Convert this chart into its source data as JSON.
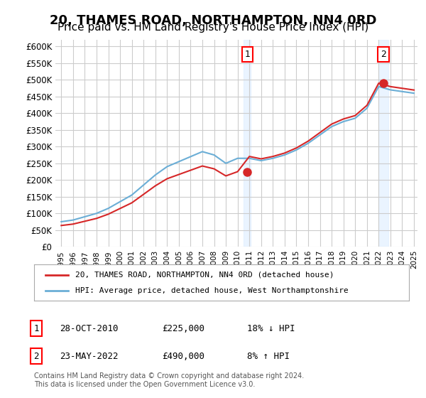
{
  "title": "20, THAMES ROAD, NORTHAMPTON, NN4 0RD",
  "subtitle": "Price paid vs. HM Land Registry's House Price Index (HPI)",
  "title_fontsize": 13,
  "subtitle_fontsize": 11,
  "ylabel_ticks": [
    "£0",
    "£50K",
    "£100K",
    "£150K",
    "£200K",
    "£250K",
    "£300K",
    "£350K",
    "£400K",
    "£450K",
    "£500K",
    "£550K",
    "£600K"
  ],
  "ytick_values": [
    0,
    50000,
    100000,
    150000,
    200000,
    250000,
    300000,
    350000,
    400000,
    450000,
    500000,
    550000,
    600000
  ],
  "ylim": [
    0,
    620000
  ],
  "xlim_start": 1995,
  "xlim_end": 2025,
  "xtick_years": [
    1995,
    1996,
    1997,
    1998,
    1999,
    2000,
    2001,
    2002,
    2003,
    2004,
    2005,
    2006,
    2007,
    2008,
    2009,
    2010,
    2011,
    2012,
    2013,
    2014,
    2015,
    2016,
    2017,
    2018,
    2019,
    2020,
    2021,
    2022,
    2023,
    2024,
    2025
  ],
  "hpi_color": "#6baed6",
  "price_color": "#d62728",
  "point1_x": 2010.83,
  "point1_y": 225000,
  "point2_x": 2022.39,
  "point2_y": 490000,
  "point1_label": "1",
  "point2_label": "2",
  "legend_line1": "20, THAMES ROAD, NORTHAMPTON, NN4 0RD (detached house)",
  "legend_line2": "HPI: Average price, detached house, West Northamptonshire",
  "table_row1_num": "1",
  "table_row1_date": "28-OCT-2010",
  "table_row1_price": "£225,000",
  "table_row1_hpi": "18% ↓ HPI",
  "table_row2_num": "2",
  "table_row2_date": "23-MAY-2022",
  "table_row2_price": "£490,000",
  "table_row2_hpi": "8% ↑ HPI",
  "footnote": "Contains HM Land Registry data © Crown copyright and database right 2024.\nThis data is licensed under the Open Government Licence v3.0.",
  "bg_color": "#ffffff",
  "plot_bg_color": "#ffffff",
  "grid_color": "#cccccc",
  "highlight_bg_color": "#ddeeff"
}
